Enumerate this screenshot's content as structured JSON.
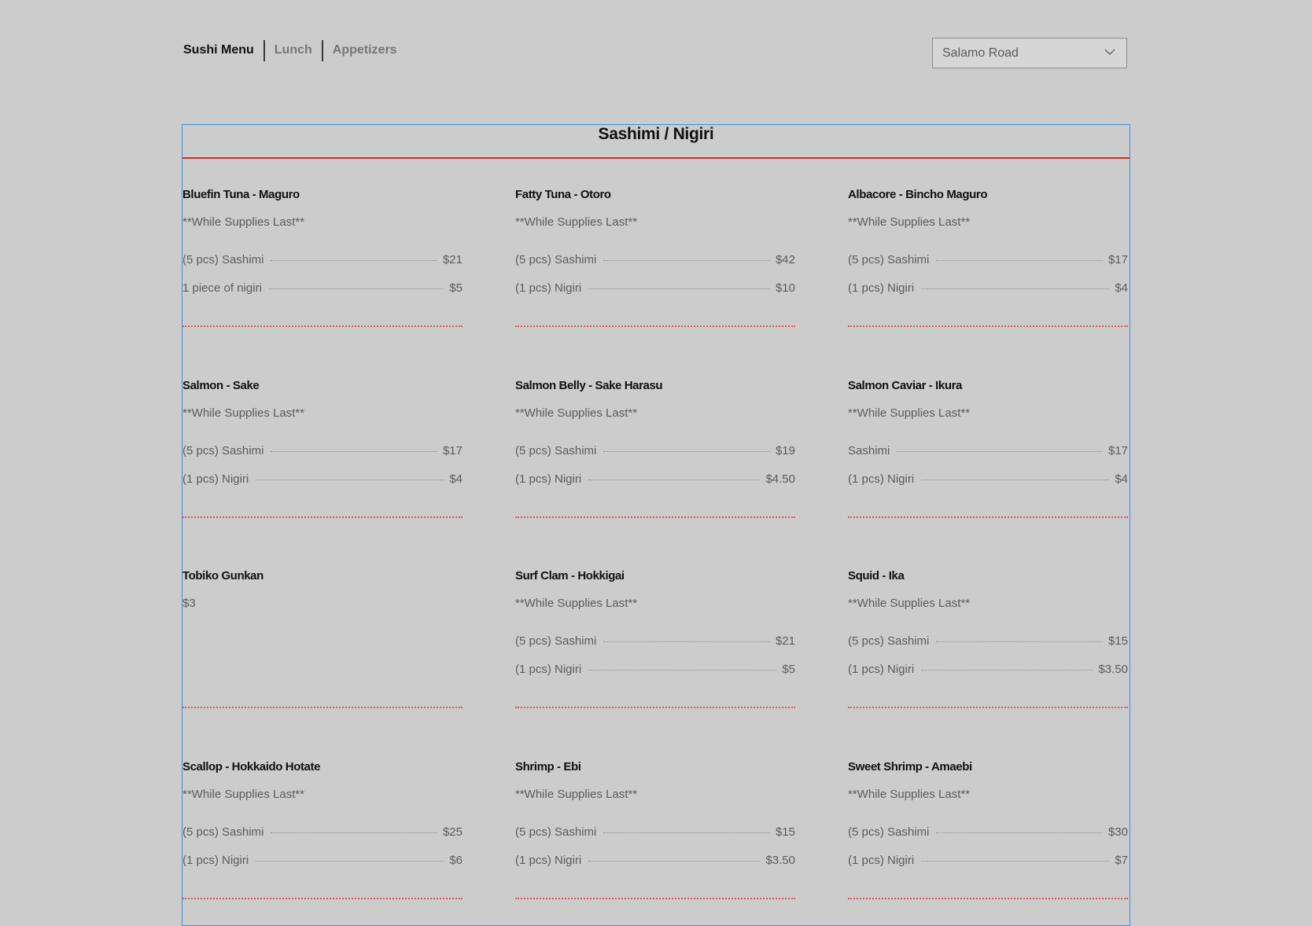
{
  "nav": {
    "tabs": [
      {
        "label": "Sushi Menu"
      },
      {
        "label": "Lunch"
      },
      {
        "label": "Appetizers"
      }
    ],
    "active_tab": "Sushi Menu"
  },
  "location_select": {
    "value": "Salamo Road",
    "icon": "chevron-down-icon"
  },
  "section": {
    "title": "Sashimi / Nigiri"
  },
  "items": [
    {
      "name": "Bluefin Tuna - Maguro",
      "note": "**While Supplies Last**",
      "rows": [
        {
          "label": "(5 pcs) Sashimi",
          "price": "$21"
        },
        {
          "label": "1 piece of nigiri",
          "price": "$5"
        }
      ]
    },
    {
      "name": "Fatty Tuna - Otoro",
      "note": "**While Supplies Last**",
      "rows": [
        {
          "label": "(5 pcs) Sashimi",
          "price": "$42"
        },
        {
          "label": "(1 pcs) Nigiri",
          "price": "$10"
        }
      ]
    },
    {
      "name": "Albacore - Bincho Maguro",
      "note": "**While Supplies Last**",
      "rows": [
        {
          "label": "(5 pcs) Sashimi",
          "price": "$17"
        },
        {
          "label": "(1 pcs) Nigiri",
          "price": "$4"
        }
      ]
    },
    {
      "name": "Salmon - Sake",
      "note": "**While Supplies Last**",
      "rows": [
        {
          "label": "(5 pcs) Sashimi",
          "price": "$17"
        },
        {
          "label": "(1 pcs) Nigiri",
          "price": "$4"
        }
      ]
    },
    {
      "name": "Salmon Belly - Sake Harasu",
      "note": "**While Supplies Last**",
      "rows": [
        {
          "label": "(5 pcs) Sashimi",
          "price": "$19"
        },
        {
          "label": "(1 pcs) Nigiri",
          "price": "$4.50"
        }
      ]
    },
    {
      "name": "Salmon Caviar - Ikura",
      "note": "**While Supplies Last**",
      "rows": [
        {
          "label": "Sashimi",
          "price": "$17"
        },
        {
          "label": "(1 pcs) Nigiri",
          "price": "$4"
        }
      ]
    },
    {
      "name": "Tobiko Gunkan",
      "note": "$3",
      "rows": []
    },
    {
      "name": "Surf Clam - Hokkigai",
      "note": "**While Supplies Last**",
      "rows": [
        {
          "label": "(5 pcs) Sashimi",
          "price": "$21"
        },
        {
          "label": "(1 pcs) Nigiri",
          "price": "$5"
        }
      ]
    },
    {
      "name": "Squid - Ika",
      "note": "**While Supplies Last**",
      "rows": [
        {
          "label": "(5 pcs) Sashimi",
          "price": "$15"
        },
        {
          "label": "(1 pcs) Nigiri",
          "price": "$3.50"
        }
      ]
    },
    {
      "name": "Scallop - Hokkaido Hotate",
      "note": "**While Supplies Last**",
      "rows": [
        {
          "label": "(5 pcs) Sashimi",
          "price": "$25"
        },
        {
          "label": "(1 pcs) Nigiri",
          "price": "$6"
        }
      ]
    },
    {
      "name": "Shrimp - Ebi",
      "note": "**While Supplies Last**",
      "rows": [
        {
          "label": "(5 pcs) Sashimi",
          "price": "$15"
        },
        {
          "label": "(1 pcs) Nigiri",
          "price": "$3.50"
        }
      ]
    },
    {
      "name": "Sweet Shrimp - Amaebi",
      "note": "**While Supplies Last**",
      "rows": [
        {
          "label": "(5 pcs) Sashimi",
          "price": "$30"
        },
        {
          "label": "(1 pcs) Nigiri",
          "price": "$7"
        }
      ]
    }
  ]
}
